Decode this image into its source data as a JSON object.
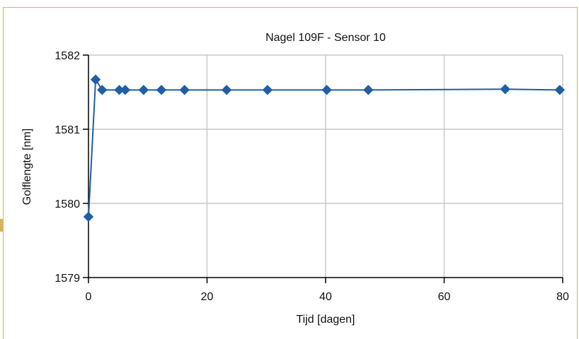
{
  "chart_data": {
    "type": "line",
    "title": "Nagel 109F - Sensor 10",
    "xlabel": "Tijd [dagen]",
    "ylabel": "Golflengte [nm]",
    "xlim": [
      0,
      80
    ],
    "ylim": [
      1579,
      1582
    ],
    "xticks": [
      0,
      20,
      40,
      60,
      80
    ],
    "yticks": [
      1579,
      1580,
      1581,
      1582
    ],
    "grid": true,
    "series": [
      {
        "color": "#1f5fa6",
        "marker": "diamond",
        "x": [
          0,
          1.2,
          2.3,
          5.2,
          6.2,
          9.3,
          12.3,
          16.2,
          23.3,
          30.2,
          40.2,
          47.2,
          70.3,
          79.5
        ],
        "y": [
          1579.82,
          1581.67,
          1581.53,
          1581.53,
          1581.53,
          1581.53,
          1581.53,
          1581.53,
          1581.53,
          1581.53,
          1581.53,
          1581.53,
          1581.54,
          1581.53
        ]
      }
    ]
  },
  "colors": {
    "frame": "#d9b25a",
    "grid": "#c8c8c8",
    "axis": "#000000",
    "series": "#1f5fa6"
  }
}
